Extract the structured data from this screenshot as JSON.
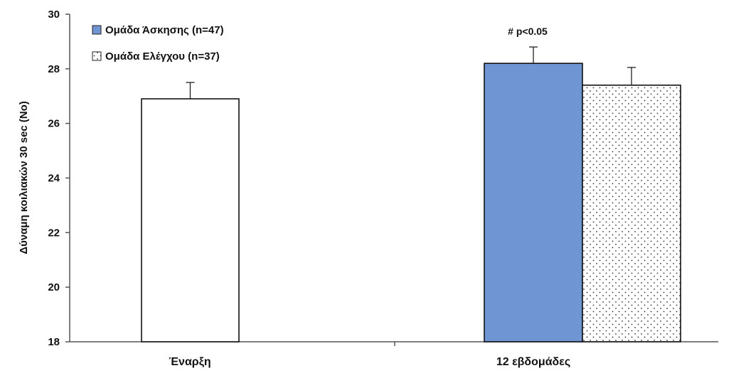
{
  "chart_data": {
    "type": "bar",
    "ylabel": "Δύναμη κοιλιακών 30 sec (Νο)",
    "xlabel": "",
    "ylim": [
      18,
      30
    ],
    "yticks": [
      18,
      20,
      22,
      24,
      26,
      28,
      30
    ],
    "categories": [
      "Έναρξη",
      "12 εβδομάδες"
    ],
    "grid": false,
    "legend_position": "top-left",
    "bars": [
      {
        "category": "Έναρξη",
        "value": 26.9,
        "error": 0.6,
        "fill": "white"
      },
      {
        "category": "12 εβδομάδες",
        "series": "Ομάδα Άσκησης (n=47)",
        "value": 28.2,
        "error": 0.6,
        "fill": "blue"
      },
      {
        "category": "12 εβδομάδες",
        "series": "Ομάδα Ελέγχου (n=37)",
        "value": 27.4,
        "error": 0.65,
        "fill": "dotted"
      }
    ],
    "legend": [
      {
        "label": "Ομάδα Άσκησης (n=47)",
        "fill": "blue"
      },
      {
        "label": "Ομάδα Ελέγχου (n=37)",
        "fill": "dotted"
      }
    ],
    "annotation": "# p<0.05",
    "colors": {
      "exercise": "#6f95d2",
      "control": "#ffffff",
      "baseline": "#ffffff",
      "outline": "#111111"
    }
  }
}
